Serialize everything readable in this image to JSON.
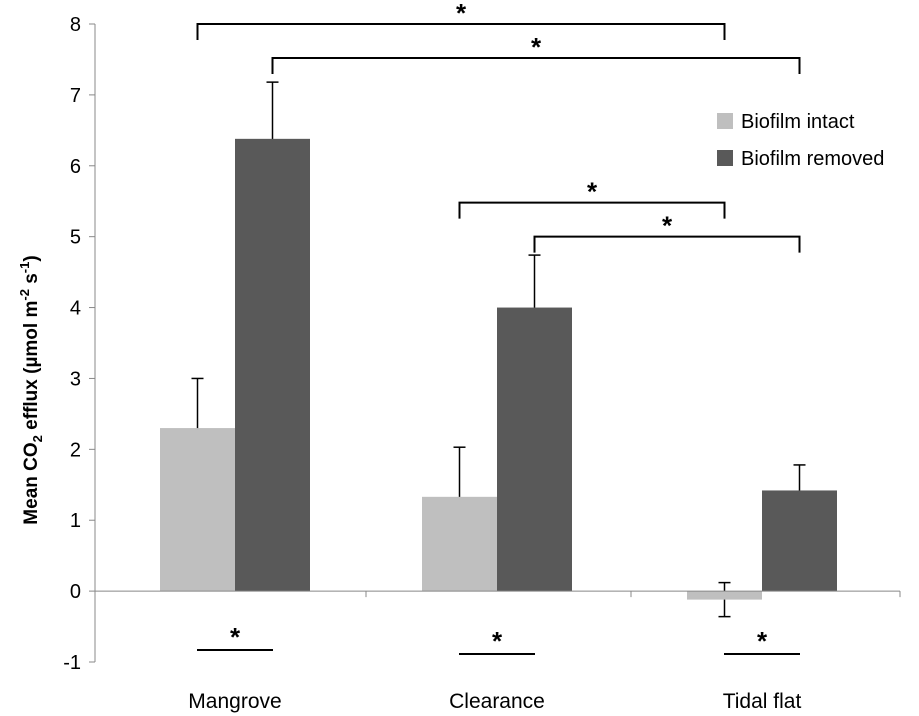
{
  "chart_data": {
    "type": "bar",
    "categories": [
      "Mangrove",
      "Clearance",
      "Tidal flat"
    ],
    "series": [
      {
        "name": "Biofilm intact",
        "color": "#bfbfbf",
        "values": [
          2.3,
          1.33,
          -0.12
        ],
        "errors": [
          0.7,
          0.7,
          0.24
        ]
      },
      {
        "name": "Biofilm removed",
        "color": "#595959",
        "values": [
          6.38,
          4.0,
          1.42
        ],
        "errors": [
          0.8,
          0.74,
          0.36
        ]
      }
    ],
    "ylim": [
      -1,
      8
    ],
    "yticks": [
      -1,
      0,
      1,
      2,
      3,
      4,
      5,
      6,
      7,
      8
    ],
    "ylabel": {
      "prefix": "Mean CO",
      "sub": "2",
      "middle": " efflux (µmol m",
      "sup1": "-2",
      "middle2": " s",
      "sup2": "-1",
      "suffix": ")"
    },
    "xlabel": "",
    "legend": {
      "position": "top-right",
      "entries": [
        "Biofilm intact",
        "Biofilm removed"
      ]
    },
    "significance": {
      "symbol": "*",
      "between_site_brackets": [
        {
          "series": 0,
          "from_category": 0,
          "to_category": 2,
          "level": 8.0
        },
        {
          "series": 1,
          "from_category": 0,
          "to_category": 2,
          "level": 7.52
        },
        {
          "series": 0,
          "from_category": 1,
          "to_category": 2,
          "level": 5.48
        },
        {
          "series": 1,
          "from_category": 1,
          "to_category": 2,
          "level": 5.0
        }
      ],
      "within_site_marks": [
        {
          "category": 0
        },
        {
          "category": 1
        },
        {
          "category": 2
        }
      ]
    },
    "grid": false
  }
}
